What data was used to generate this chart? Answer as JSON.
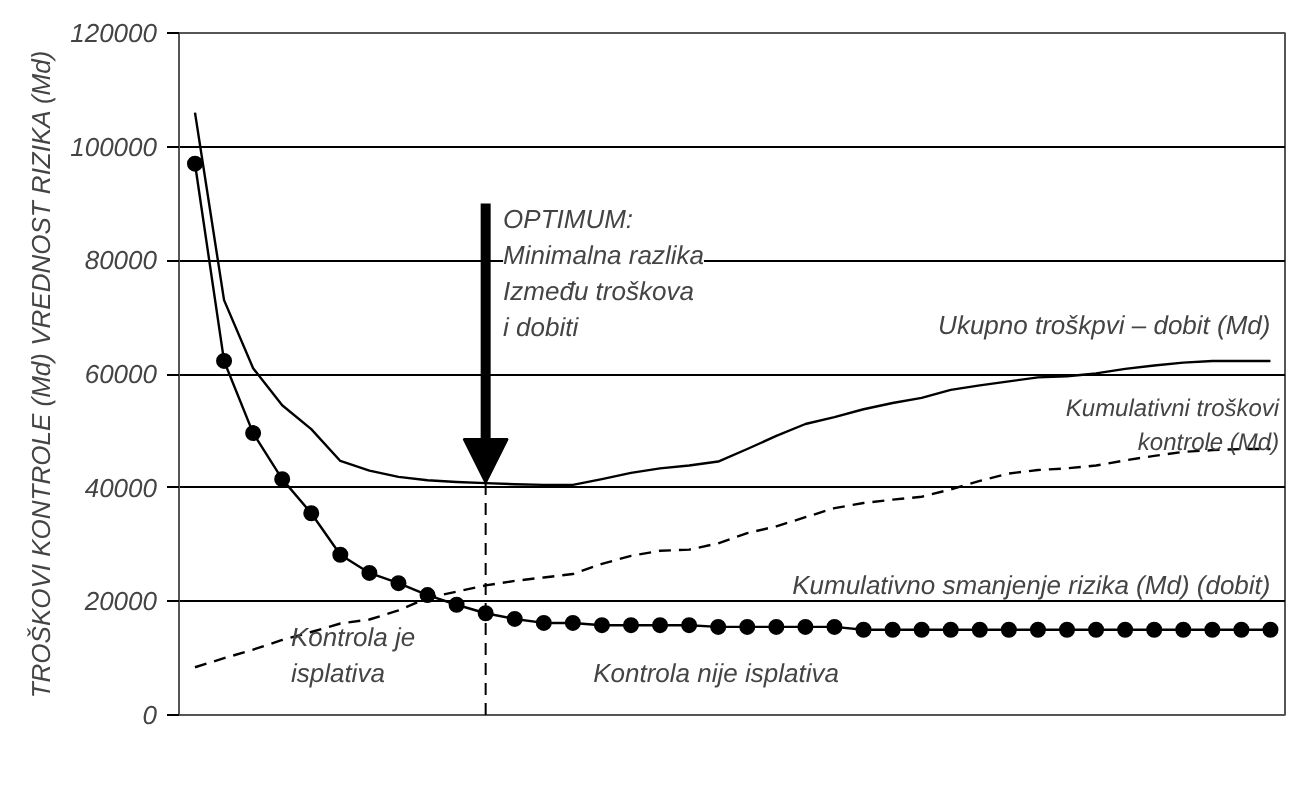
{
  "chart_data": {
    "type": "line",
    "ylabel": "TROŠKOVI KONTROLE (Md) VREDNOST RIZIKA (Md)",
    "categories": [
      null,
      null,
      null,
      null,
      null,
      null,
      null,
      null,
      null,
      null,
      null,
      null,
      null,
      null,
      null,
      null,
      null,
      null,
      null,
      null,
      null,
      null,
      null,
      null,
      null,
      null,
      null,
      null,
      null,
      null,
      null,
      null,
      null,
      null,
      null,
      null,
      null,
      null
    ],
    "series": [
      {
        "name": "Ukupno troškpvi – dobit (Md)",
        "color": "#000000",
        "line_style": "solid",
        "marker": "none",
        "values": [
          106000,
          73000,
          61000,
          54500,
          50300,
          44700,
          43000,
          41900,
          41300,
          41000,
          40800,
          40600,
          40500,
          40500,
          41500,
          42600,
          43400,
          43900,
          44600,
          46800,
          49100,
          51200,
          52400,
          53800,
          54900,
          55800,
          57200,
          58000,
          58700,
          59400,
          59600,
          60100,
          60900,
          61500,
          62000,
          62300,
          62300,
          62300
        ]
      },
      {
        "name": "Kumulativni troškovi\nkontrole (Md)",
        "color": "#000000",
        "line_style": "dashed",
        "marker": "none",
        "values": [
          8400,
          10000,
          11500,
          13200,
          14600,
          16100,
          16800,
          18400,
          20600,
          21700,
          22800,
          23600,
          24200,
          24800,
          26600,
          28000,
          28900,
          29100,
          30200,
          32000,
          33200,
          34800,
          36400,
          37300,
          37900,
          38400,
          39700,
          41200,
          42500,
          43100,
          43400,
          43900,
          44800,
          45600,
          46300,
          46600,
          46800,
          46800
        ]
      },
      {
        "name": "Kumulativno smanjenje rizika (Md) (dobit)",
        "color": "#000000",
        "line_style": "solid",
        "marker": "circle",
        "values": [
          97000,
          62300,
          49600,
          41500,
          35500,
          28200,
          25000,
          23200,
          21100,
          19400,
          17900,
          16900,
          16200,
          16200,
          15800,
          15800,
          15800,
          15800,
          15500,
          15500,
          15500,
          15500,
          15500,
          15000,
          15000,
          15000,
          15000,
          15000,
          15000,
          15000,
          15000,
          15000,
          15000,
          15000,
          15000,
          15000,
          15000,
          15000
        ]
      }
    ],
    "ylim": [
      0,
      120000
    ],
    "yticks": [
      0,
      20000,
      40000,
      60000,
      80000,
      100000,
      120000
    ],
    "grid": "y",
    "legend": false,
    "tick_labels": "y",
    "annotations": [
      "OPTIMUM:\nMinimalna razlika\nIzmeđu troškova\ni dobiti",
      "Kontrola je\nisplativa",
      "Kontrola nije isplativa"
    ]
  }
}
